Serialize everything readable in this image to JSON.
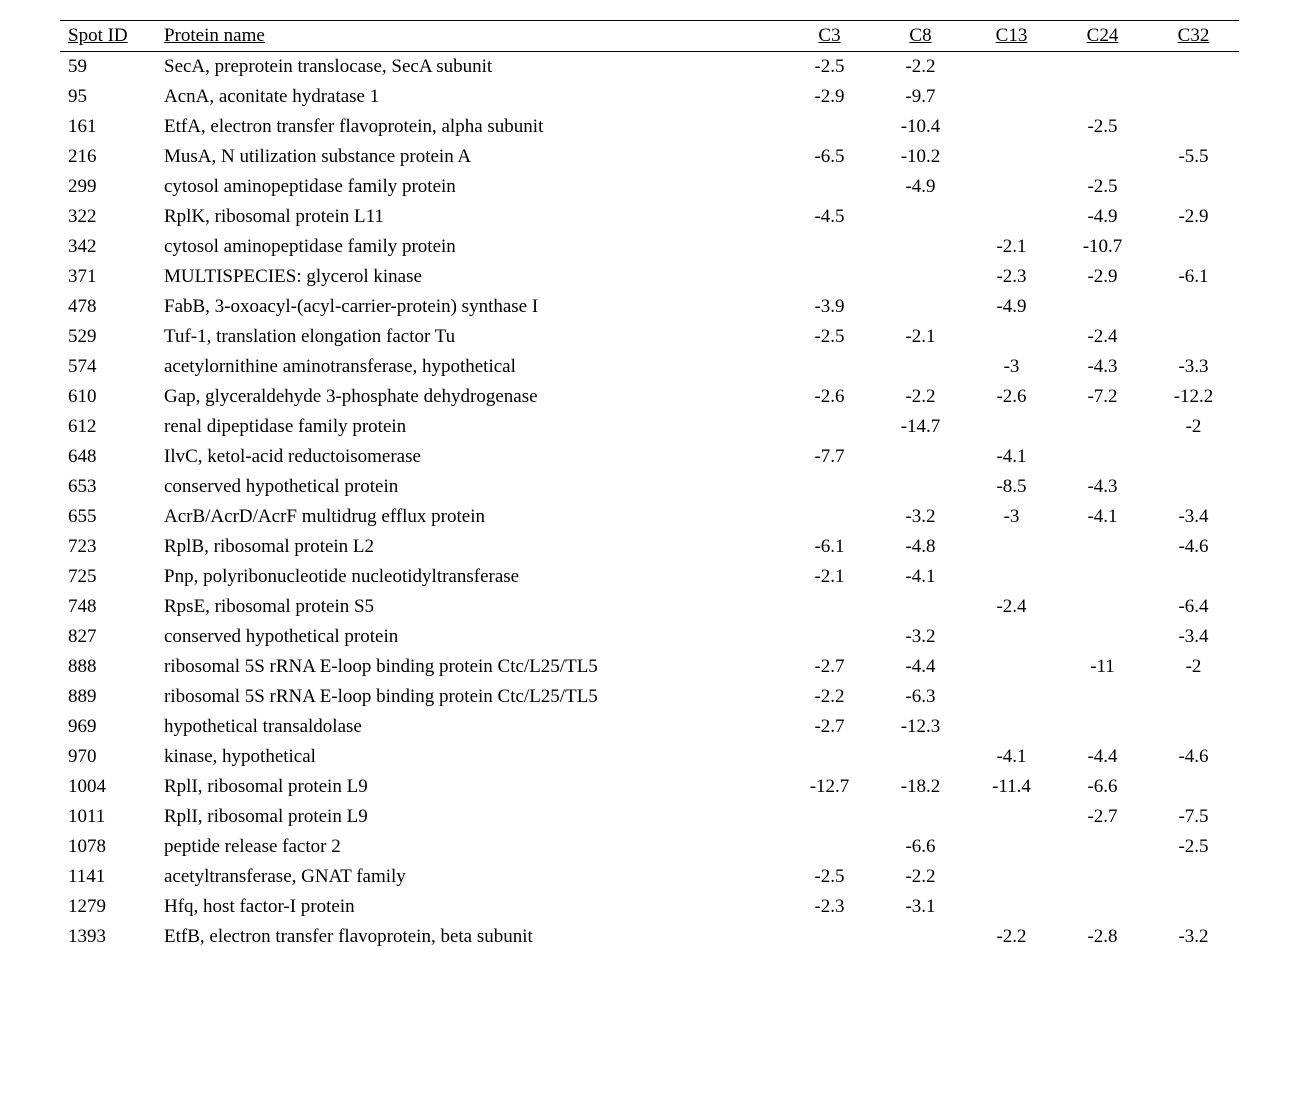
{
  "table": {
    "columns": [
      "Spot ID",
      "Protein name",
      "C3",
      "C8",
      "C13",
      "C24",
      "C32"
    ],
    "rows": [
      {
        "spot_id": "59",
        "protein_name": "SecA, preprotein translocase, SecA subunit",
        "c3": "-2.5",
        "c8": "-2.2",
        "c13": "",
        "c24": "",
        "c32": ""
      },
      {
        "spot_id": "95",
        "protein_name": "AcnA, aconitate hydratase 1",
        "c3": "-2.9",
        "c8": "-9.7",
        "c13": "",
        "c24": "",
        "c32": ""
      },
      {
        "spot_id": "161",
        "protein_name": "EtfA, electron transfer flavoprotein, alpha subunit",
        "c3": "",
        "c8": "-10.4",
        "c13": "",
        "c24": "-2.5",
        "c32": ""
      },
      {
        "spot_id": "216",
        "protein_name": "MusA, N utilization substance protein A",
        "c3": "-6.5",
        "c8": "-10.2",
        "c13": "",
        "c24": "",
        "c32": "-5.5"
      },
      {
        "spot_id": "299",
        "protein_name": "cytosol aminopeptidase family protein",
        "c3": "",
        "c8": "-4.9",
        "c13": "",
        "c24": "-2.5",
        "c32": ""
      },
      {
        "spot_id": "322",
        "protein_name": "RplK, ribosomal protein L11",
        "c3": "-4.5",
        "c8": "",
        "c13": "",
        "c24": "-4.9",
        "c32": "-2.9"
      },
      {
        "spot_id": "342",
        "protein_name": "cytosol aminopeptidase family protein",
        "c3": "",
        "c8": "",
        "c13": "-2.1",
        "c24": "-10.7",
        "c32": ""
      },
      {
        "spot_id": "371",
        "protein_name": "MULTISPECIES: glycerol kinase",
        "c3": "",
        "c8": "",
        "c13": "-2.3",
        "c24": "-2.9",
        "c32": "-6.1"
      },
      {
        "spot_id": "478",
        "protein_name": "FabB, 3-oxoacyl-(acyl-carrier-protein) synthase I",
        "c3": "-3.9",
        "c8": "",
        "c13": "-4.9",
        "c24": "",
        "c32": ""
      },
      {
        "spot_id": "529",
        "protein_name": "Tuf-1, translation elongation factor Tu",
        "c3": "-2.5",
        "c8": "-2.1",
        "c13": "",
        "c24": "-2.4",
        "c32": ""
      },
      {
        "spot_id": "574",
        "protein_name": "acetylornithine aminotransferase, hypothetical",
        "c3": "",
        "c8": "",
        "c13": "-3",
        "c24": "-4.3",
        "c32": "-3.3"
      },
      {
        "spot_id": "610",
        "protein_name": "Gap, glyceraldehyde 3-phosphate dehydrogenase",
        "c3": "-2.6",
        "c8": "-2.2",
        "c13": "-2.6",
        "c24": "-7.2",
        "c32": "-12.2"
      },
      {
        "spot_id": "612",
        "protein_name": "renal dipeptidase family protein",
        "c3": "",
        "c8": "-14.7",
        "c13": "",
        "c24": "",
        "c32": "-2"
      },
      {
        "spot_id": "648",
        "protein_name": "IlvC, ketol-acid reductoisomerase",
        "c3": "-7.7",
        "c8": "",
        "c13": "-4.1",
        "c24": "",
        "c32": ""
      },
      {
        "spot_id": "653",
        "protein_name": "conserved hypothetical protein",
        "c3": "",
        "c8": "",
        "c13": "-8.5",
        "c24": "-4.3",
        "c32": ""
      },
      {
        "spot_id": "655",
        "protein_name": "AcrB/AcrD/AcrF multidrug efflux protein",
        "c3": "",
        "c8": "-3.2",
        "c13": "-3",
        "c24": "-4.1",
        "c32": "-3.4"
      },
      {
        "spot_id": "723",
        "protein_name": "RplB, ribosomal protein L2",
        "c3": "-6.1",
        "c8": "-4.8",
        "c13": "",
        "c24": "",
        "c32": "-4.6"
      },
      {
        "spot_id": "725",
        "protein_name": "Pnp, polyribonucleotide nucleotidyltransferase",
        "c3": "-2.1",
        "c8": "-4.1",
        "c13": "",
        "c24": "",
        "c32": ""
      },
      {
        "spot_id": "748",
        "protein_name": "RpsE, ribosomal protein S5",
        "c3": "",
        "c8": "",
        "c13": "-2.4",
        "c24": "",
        "c32": "-6.4"
      },
      {
        "spot_id": "827",
        "protein_name": "conserved hypothetical protein",
        "c3": "",
        "c8": "-3.2",
        "c13": "",
        "c24": "",
        "c32": "-3.4"
      },
      {
        "spot_id": "888",
        "protein_name": "ribosomal 5S rRNA E-loop binding protein Ctc/L25/TL5",
        "c3": "-2.7",
        "c8": "-4.4",
        "c13": "",
        "c24": "-11",
        "c32": "-2"
      },
      {
        "spot_id": "889",
        "protein_name": "ribosomal 5S rRNA E-loop binding protein Ctc/L25/TL5",
        "c3": "-2.2",
        "c8": "-6.3",
        "c13": "",
        "c24": "",
        "c32": ""
      },
      {
        "spot_id": "969",
        "protein_name": "hypothetical transaldolase",
        "c3": "-2.7",
        "c8": "-12.3",
        "c13": "",
        "c24": "",
        "c32": ""
      },
      {
        "spot_id": "970",
        "protein_name": "kinase, hypothetical",
        "c3": "",
        "c8": "",
        "c13": "-4.1",
        "c24": "-4.4",
        "c32": "-4.6"
      },
      {
        "spot_id": "1004",
        "protein_name": "RplI, ribosomal protein L9",
        "c3": "-12.7",
        "c8": "-18.2",
        "c13": "-11.4",
        "c24": "-6.6",
        "c32": ""
      },
      {
        "spot_id": "1011",
        "protein_name": "RplI, ribosomal protein L9",
        "c3": "",
        "c8": "",
        "c13": "",
        "c24": "-2.7",
        "c32": "-7.5"
      },
      {
        "spot_id": "1078",
        "protein_name": "peptide release factor 2",
        "c3": "",
        "c8": "-6.6",
        "c13": "",
        "c24": "",
        "c32": "-2.5"
      },
      {
        "spot_id": "1141",
        "protein_name": "acetyltransferase, GNAT family",
        "c3": "-2.5",
        "c8": "-2.2",
        "c13": "",
        "c24": "",
        "c32": ""
      },
      {
        "spot_id": "1279",
        "protein_name": "Hfq, host factor-I protein",
        "c3": "-2.3",
        "c8": "-3.1",
        "c13": "",
        "c24": "",
        "c32": ""
      },
      {
        "spot_id": "1393",
        "protein_name": "EtfB, electron transfer flavoprotein, beta subunit",
        "c3": "",
        "c8": "",
        "c13": "-2.2",
        "c24": "-2.8",
        "c32": "-3.2"
      }
    ]
  }
}
